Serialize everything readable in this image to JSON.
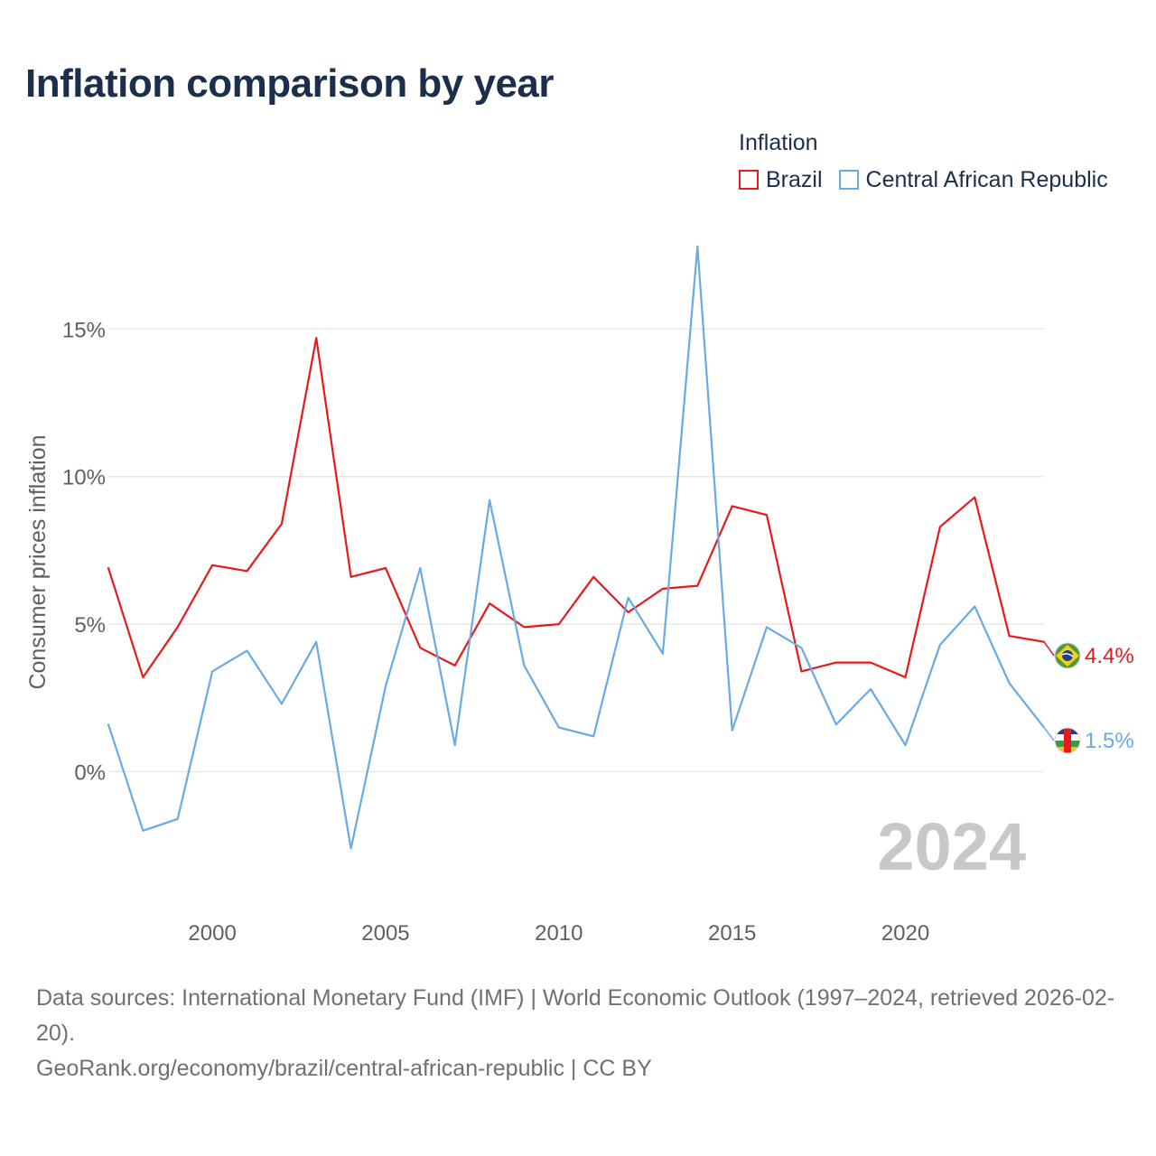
{
  "colors": {
    "title": "#1b2e4b",
    "axis_text": "#5f5f5f",
    "grid": "#e8e8e8",
    "brazil": "#e8191c",
    "car": "#6aaae4",
    "year_watermark": "#c8c8c8",
    "footer": "#707070"
  },
  "chart_data": {
    "type": "line",
    "title": "Inflation comparison by year",
    "legend_title": "Inflation",
    "ylabel": "Consumer prices inflation",
    "xlabel": "",
    "year_label": "2024",
    "x": [
      1997,
      1998,
      1999,
      2000,
      2001,
      2002,
      2003,
      2004,
      2005,
      2006,
      2007,
      2008,
      2009,
      2010,
      2011,
      2012,
      2013,
      2014,
      2015,
      2016,
      2017,
      2018,
      2019,
      2020,
      2021,
      2022,
      2023,
      2024
    ],
    "xlim": [
      1997,
      2024
    ],
    "ylim": [
      -4.3,
      18.5
    ],
    "x_ticks": [
      2000,
      2005,
      2010,
      2015,
      2020
    ],
    "x_tick_labels": [
      "2000",
      "2005",
      "2010",
      "2015",
      "2020"
    ],
    "y_ticks": [
      0,
      5,
      10,
      15
    ],
    "y_tick_labels": [
      "0%",
      "5%",
      "10%",
      "15%"
    ],
    "grid": true,
    "legend_position": "top-right",
    "series": [
      {
        "name": "Brazil",
        "color": "#e8191c",
        "values": [
          6.9,
          3.2,
          4.9,
          7.0,
          6.8,
          8.4,
          14.7,
          6.6,
          6.9,
          4.2,
          3.6,
          5.7,
          4.9,
          5.0,
          6.6,
          5.4,
          6.2,
          6.3,
          9.0,
          8.7,
          3.4,
          3.7,
          3.7,
          3.2,
          8.3,
          9.3,
          4.6,
          4.4
        ],
        "end_label": "4.4%"
      },
      {
        "name": "Central African Republic",
        "color": "#6aaae4",
        "values": [
          1.6,
          -2.0,
          -1.6,
          3.4,
          4.1,
          2.3,
          4.4,
          -2.6,
          2.9,
          6.9,
          0.9,
          9.2,
          3.6,
          1.5,
          1.2,
          5.9,
          4.0,
          17.8,
          1.4,
          4.9,
          4.2,
          1.6,
          2.8,
          0.9,
          4.3,
          5.6,
          3.0,
          1.5
        ],
        "end_label": "1.5%"
      }
    ]
  },
  "footer": {
    "sources": "Data sources: International Monetary Fund (IMF) | World Economic Outlook (1997–2024, retrieved 2026-02-20).",
    "credit": "GeoRank.org/economy/brazil/central-african-republic | CC BY"
  }
}
